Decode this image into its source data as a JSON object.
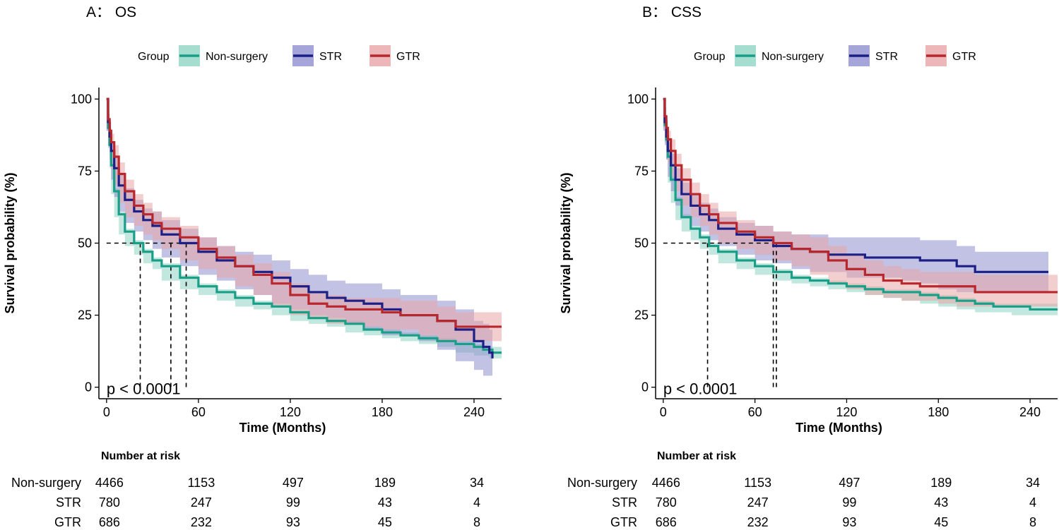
{
  "chart_data": [
    {
      "type": "line",
      "subtype": "kaplan-meier",
      "panel_title": "A： OS",
      "xlabel": "Time (Months)",
      "ylabel": "Survival probability (%)",
      "xlim": [
        -5,
        258
      ],
      "ylim": [
        -4,
        104
      ],
      "x_ticks": [
        0,
        60,
        120,
        180,
        240
      ],
      "y_ticks": [
        0,
        25,
        50,
        75,
        100
      ],
      "legend_title": "Group",
      "legend_position": "top",
      "pvalue_text": "p < 0.0001",
      "median_x": [
        22,
        42,
        52
      ],
      "series": [
        {
          "name": "Non-surgery",
          "color": "#1a9e87",
          "band_color": "#8fd4c3",
          "x": [
            0,
            1,
            2,
            3,
            5,
            8,
            12,
            18,
            24,
            30,
            36,
            48,
            60,
            72,
            84,
            96,
            108,
            120,
            132,
            144,
            156,
            168,
            180,
            192,
            204,
            216,
            228,
            240,
            246,
            250,
            252,
            258
          ],
          "y": [
            100,
            90,
            84,
            77,
            68,
            60,
            54,
            50,
            47,
            44,
            42,
            38,
            35,
            33,
            31,
            29,
            28,
            26,
            24,
            23,
            22,
            20,
            19,
            18,
            17,
            16,
            15,
            14,
            13,
            13,
            12,
            12
          ],
          "lower": [
            100,
            89,
            83,
            76,
            67,
            59,
            53,
            49,
            46,
            43,
            41,
            37,
            34,
            32,
            30,
            28,
            27,
            25,
            23,
            22,
            21,
            19,
            18,
            17,
            16,
            15,
            14,
            12,
            11,
            11,
            10,
            10
          ],
          "upper": [
            100,
            91,
            85,
            78,
            69,
            61,
            55,
            51,
            48,
            45,
            43,
            39,
            36,
            34,
            32,
            30,
            29,
            27,
            25,
            24,
            23,
            21,
            20,
            19,
            18,
            17,
            16,
            15,
            14,
            14,
            14,
            14
          ]
        },
        {
          "name": "STR",
          "color": "#1c1f85",
          "band_color": "#8f8fcf",
          "x": [
            0,
            1,
            2,
            3,
            5,
            8,
            12,
            18,
            24,
            30,
            36,
            48,
            60,
            72,
            84,
            96,
            108,
            120,
            132,
            144,
            156,
            168,
            180,
            192,
            204,
            216,
            228,
            240,
            246,
            250,
            252
          ],
          "y": [
            100,
            92,
            87,
            82,
            76,
            70,
            65,
            61,
            58,
            56,
            53,
            50,
            47,
            44,
            42,
            40,
            38,
            35,
            33,
            31,
            30,
            29,
            27,
            25,
            25,
            23,
            20,
            16,
            14,
            12,
            10
          ],
          "lower": [
            100,
            89,
            84,
            79,
            72,
            66,
            61,
            57,
            54,
            51,
            48,
            45,
            42,
            39,
            37,
            34,
            32,
            29,
            27,
            25,
            24,
            22,
            20,
            18,
            18,
            16,
            13,
            9,
            6,
            4,
            4
          ],
          "upper": [
            100,
            95,
            90,
            85,
            80,
            74,
            69,
            65,
            62,
            61,
            58,
            55,
            52,
            49,
            47,
            46,
            44,
            41,
            39,
            37,
            36,
            36,
            34,
            32,
            32,
            30,
            27,
            23,
            22,
            20,
            18
          ]
        },
        {
          "name": "GTR",
          "color": "#b8272c",
          "band_color": "#e8a5a8",
          "x": [
            0,
            1,
            2,
            3,
            5,
            8,
            12,
            18,
            24,
            30,
            36,
            48,
            60,
            72,
            84,
            96,
            108,
            120,
            132,
            144,
            156,
            168,
            180,
            192,
            204,
            216,
            228,
            240,
            258
          ],
          "y": [
            100,
            93,
            89,
            85,
            80,
            74,
            68,
            63,
            60,
            57,
            55,
            52,
            48,
            45,
            42,
            39,
            36,
            32,
            29,
            28,
            27,
            27,
            26,
            25,
            25,
            23,
            21,
            21,
            21
          ],
          "lower": [
            100,
            90,
            86,
            82,
            76,
            70,
            64,
            59,
            56,
            53,
            51,
            48,
            44,
            41,
            38,
            35,
            32,
            28,
            25,
            24,
            22,
            22,
            21,
            20,
            20,
            18,
            16,
            16,
            16
          ],
          "upper": [
            100,
            96,
            92,
            88,
            84,
            78,
            72,
            67,
            64,
            61,
            59,
            56,
            52,
            49,
            46,
            43,
            40,
            36,
            33,
            32,
            31,
            31,
            31,
            30,
            30,
            28,
            26,
            26,
            27
          ]
        }
      ],
      "risk_table": {
        "title": "Number at risk",
        "time_points": [
          0,
          60,
          120,
          180,
          240
        ],
        "rows": [
          {
            "group": "Non-surgery",
            "values": [
              "4466",
              "1153",
              "497",
              "189",
              "34"
            ]
          },
          {
            "group": "STR",
            "values": [
              "780",
              "247",
              "99",
              "43",
              "4"
            ]
          },
          {
            "group": "GTR",
            "values": [
              "686",
              "232",
              "93",
              "45",
              "8"
            ]
          }
        ]
      }
    },
    {
      "type": "line",
      "subtype": "kaplan-meier",
      "panel_title": "B： CSS",
      "xlabel": "Time (Months)",
      "ylabel": "Survival probability (%)",
      "xlim": [
        -5,
        258
      ],
      "ylim": [
        -4,
        104
      ],
      "x_ticks": [
        0,
        60,
        120,
        180,
        240
      ],
      "y_ticks": [
        0,
        25,
        50,
        75,
        100
      ],
      "legend_title": "Group",
      "legend_position": "top",
      "pvalue_text": "p < 0.0001",
      "median_x": [
        29,
        72,
        74
      ],
      "series": [
        {
          "name": "Non-surgery",
          "color": "#1a9e87",
          "band_color": "#8fd4c3",
          "x": [
            0,
            1,
            2,
            3,
            5,
            8,
            12,
            18,
            24,
            30,
            36,
            48,
            60,
            72,
            84,
            96,
            108,
            120,
            132,
            144,
            156,
            168,
            180,
            192,
            204,
            216,
            228,
            240,
            258
          ],
          "y": [
            100,
            91,
            86,
            80,
            72,
            65,
            59,
            55,
            52,
            49,
            47,
            44,
            42,
            40,
            38,
            37,
            36,
            35,
            34,
            33,
            33,
            32,
            31,
            30,
            29,
            28,
            28,
            27,
            27
          ],
          "lower": [
            100,
            90,
            85,
            79,
            71,
            64,
            58,
            54,
            51,
            48,
            46,
            43,
            41,
            39,
            37,
            36,
            35,
            34,
            33,
            32,
            31,
            30,
            29,
            28,
            27,
            26,
            26,
            25,
            25
          ],
          "upper": [
            100,
            92,
            87,
            81,
            73,
            66,
            60,
            56,
            53,
            50,
            48,
            45,
            43,
            41,
            39,
            38,
            37,
            36,
            35,
            34,
            34,
            33,
            32,
            31,
            30,
            29,
            29,
            29,
            29
          ]
        },
        {
          "name": "STR",
          "color": "#1c1f85",
          "band_color": "#8f8fcf",
          "x": [
            0,
            1,
            2,
            3,
            5,
            8,
            12,
            18,
            24,
            30,
            36,
            48,
            60,
            72,
            84,
            96,
            108,
            120,
            132,
            144,
            156,
            168,
            180,
            192,
            204,
            216,
            228,
            240,
            252
          ],
          "y": [
            100,
            92,
            87,
            82,
            77,
            72,
            67,
            63,
            60,
            58,
            55,
            53,
            51,
            49,
            48,
            47,
            46,
            46,
            45,
            45,
            45,
            44,
            44,
            42,
            40,
            40,
            40,
            40,
            40
          ],
          "lower": [
            100,
            89,
            84,
            79,
            73,
            68,
            63,
            59,
            56,
            54,
            51,
            49,
            46,
            44,
            43,
            41,
            40,
            40,
            38,
            38,
            38,
            37,
            36,
            34,
            33,
            33,
            33,
            33,
            33
          ],
          "upper": [
            100,
            95,
            90,
            85,
            81,
            76,
            71,
            67,
            64,
            62,
            59,
            57,
            56,
            54,
            53,
            53,
            52,
            52,
            52,
            52,
            52,
            51,
            51,
            49,
            47,
            47,
            47,
            47,
            47
          ]
        },
        {
          "name": "GTR",
          "color": "#b8272c",
          "band_color": "#e8a5a8",
          "x": [
            0,
            1,
            2,
            3,
            5,
            8,
            12,
            18,
            24,
            30,
            36,
            48,
            60,
            72,
            84,
            96,
            108,
            120,
            132,
            144,
            156,
            168,
            180,
            192,
            204,
            216,
            228,
            240,
            258
          ],
          "y": [
            100,
            94,
            90,
            86,
            82,
            77,
            72,
            67,
            63,
            60,
            57,
            54,
            52,
            50,
            48,
            47,
            44,
            41,
            39,
            37,
            36,
            35,
            35,
            35,
            33,
            33,
            33,
            33,
            33
          ],
          "lower": [
            100,
            91,
            87,
            83,
            78,
            73,
            68,
            63,
            59,
            56,
            53,
            50,
            48,
            46,
            44,
            42,
            39,
            36,
            34,
            32,
            31,
            30,
            30,
            29,
            28,
            28,
            28,
            28,
            28
          ],
          "upper": [
            100,
            97,
            93,
            89,
            86,
            81,
            76,
            71,
            67,
            64,
            61,
            58,
            56,
            54,
            53,
            52,
            49,
            46,
            44,
            42,
            41,
            40,
            40,
            40,
            39,
            39,
            39,
            39,
            39
          ]
        }
      ],
      "risk_table": {
        "title": "Number at risk",
        "time_points": [
          0,
          60,
          120,
          180,
          240
        ],
        "rows": [
          {
            "group": "Non-surgery",
            "values": [
              "4466",
              "1153",
              "497",
              "189",
              "34"
            ]
          },
          {
            "group": "STR",
            "values": [
              "780",
              "247",
              "99",
              "43",
              "4"
            ]
          },
          {
            "group": "GTR",
            "values": [
              "686",
              "232",
              "93",
              "45",
              "8"
            ]
          }
        ]
      }
    }
  ]
}
